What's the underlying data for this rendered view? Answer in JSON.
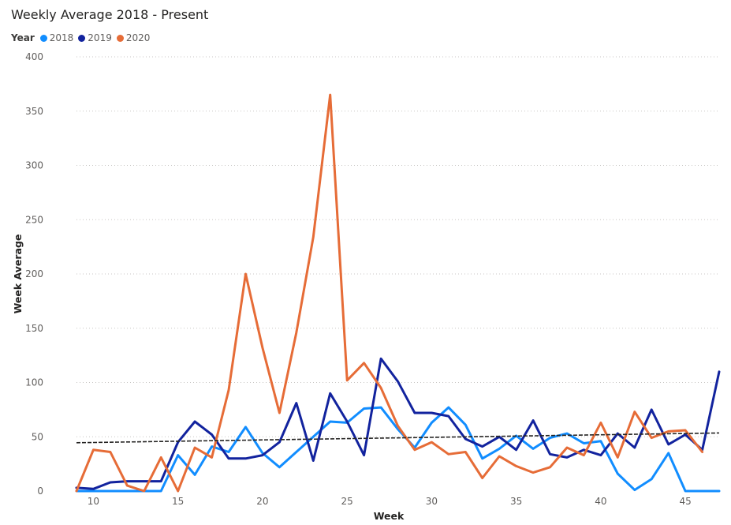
{
  "chart_data": {
    "type": "line",
    "title": "Weekly Average 2018 - Present",
    "xlabel": "Week",
    "ylabel": "Week Average",
    "xlim": [
      9,
      47
    ],
    "ylim": [
      0,
      400
    ],
    "x_ticks": [
      10,
      15,
      20,
      25,
      30,
      35,
      40,
      45
    ],
    "y_ticks": [
      0,
      50,
      100,
      150,
      200,
      250,
      300,
      350,
      400
    ],
    "grid": true,
    "legend": {
      "title": "Year",
      "position": "top-left"
    },
    "series": [
      {
        "name": "2018",
        "color": "#118DFF",
        "x": [
          9,
          10,
          11,
          12,
          13,
          14,
          15,
          16,
          17,
          18,
          19,
          20,
          21,
          22,
          23,
          24,
          25,
          26,
          27,
          28,
          29,
          30,
          31,
          32,
          33,
          34,
          35,
          36,
          37,
          38,
          39,
          40,
          41,
          42,
          43,
          44,
          45,
          46,
          47
        ],
        "values": [
          0,
          0,
          0,
          0,
          0,
          0,
          33,
          15,
          41,
          36,
          59,
          35,
          22,
          36,
          50,
          64,
          63,
          76,
          77,
          57,
          40,
          63,
          77,
          61,
          30,
          39,
          51,
          39,
          49,
          53,
          44,
          46,
          16,
          1,
          11,
          35,
          0,
          0,
          0
        ]
      },
      {
        "name": "2019",
        "color": "#12239E",
        "x": [
          9,
          10,
          11,
          12,
          13,
          14,
          15,
          16,
          17,
          18,
          19,
          20,
          21,
          22,
          23,
          24,
          25,
          26,
          27,
          28,
          29,
          30,
          31,
          32,
          33,
          34,
          35,
          36,
          37,
          38,
          39,
          40,
          41,
          42,
          43,
          44,
          45,
          46,
          47
        ],
        "values": [
          3,
          2,
          8,
          9,
          9,
          9,
          45,
          64,
          52,
          30,
          30,
          33,
          45,
          81,
          28,
          90,
          64,
          33,
          122,
          101,
          72,
          72,
          69,
          48,
          41,
          50,
          38,
          65,
          34,
          31,
          38,
          33,
          53,
          40,
          75,
          43,
          52,
          38,
          110
        ]
      },
      {
        "name": "2020",
        "color": "#E66C37",
        "x": [
          9,
          10,
          11,
          12,
          13,
          14,
          15,
          16,
          17,
          18,
          19,
          20,
          21,
          22,
          23,
          24,
          25,
          26,
          27,
          28,
          29,
          30,
          31,
          32,
          33,
          34,
          35,
          36,
          37,
          38,
          39,
          40,
          41,
          42,
          43,
          44,
          45,
          46
        ],
        "values": [
          0,
          38,
          36,
          5,
          0,
          31,
          0,
          40,
          31,
          93,
          200,
          132,
          72,
          146,
          234,
          365,
          102,
          118,
          95,
          60,
          38,
          45,
          34,
          36,
          12,
          32,
          23,
          17,
          22,
          40,
          33,
          63,
          31,
          73,
          49,
          55,
          56,
          36
        ]
      }
    ],
    "trendline": {
      "label": "trend",
      "color": "#252423",
      "x": [
        9,
        47
      ],
      "values": [
        44.5,
        53.5
      ]
    }
  }
}
